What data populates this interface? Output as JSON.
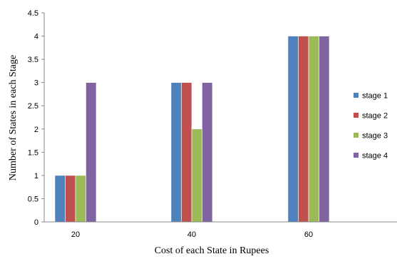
{
  "chart_data": {
    "type": "bar",
    "title": "",
    "xlabel": "Cost of each State in Rupees",
    "ylabel": "Number of States in each Stage",
    "categories": [
      "20",
      "40",
      "60"
    ],
    "ylim": [
      0,
      4.5
    ],
    "yticks": [
      "0",
      "0.5",
      "1",
      "1.5",
      "2",
      "2.5",
      "3",
      "3.5",
      "4",
      "4.5"
    ],
    "grid": false,
    "legend_position": "right",
    "series": [
      {
        "name": "stage 1",
        "color": "#4f81bd",
        "values": [
          1,
          3,
          4
        ]
      },
      {
        "name": "stage 2",
        "color": "#c0504d",
        "values": [
          1,
          3,
          4
        ]
      },
      {
        "name": "stage 3",
        "color": "#9bbb59",
        "values": [
          1,
          2,
          4
        ]
      },
      {
        "name": "stage 4",
        "color": "#8064a2",
        "values": [
          3,
          3,
          4
        ]
      }
    ]
  }
}
